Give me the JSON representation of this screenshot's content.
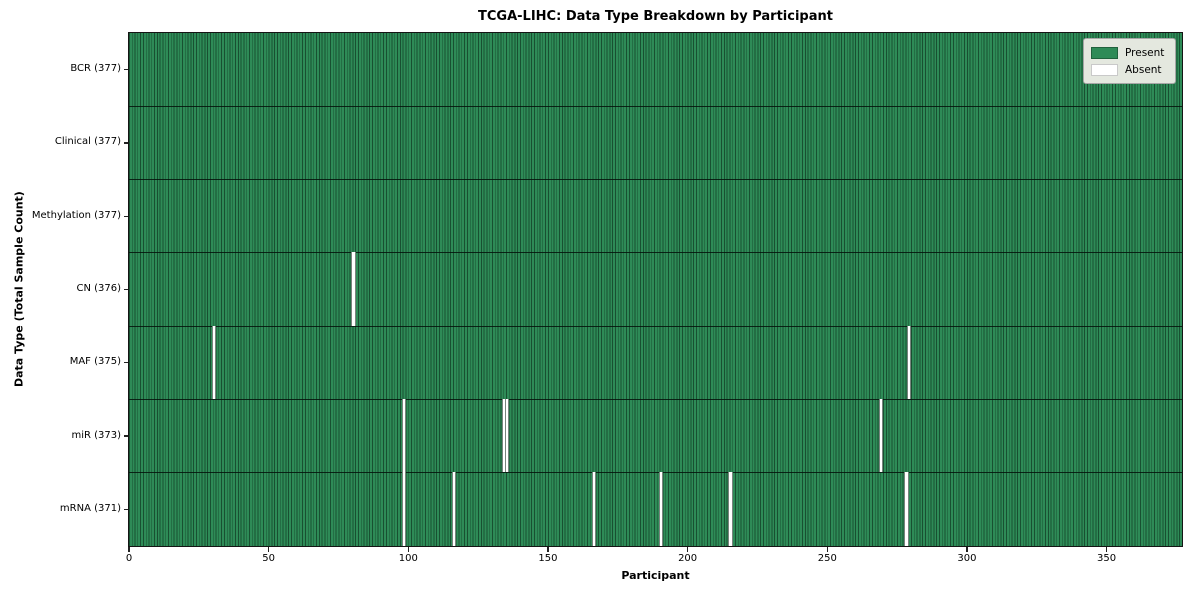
{
  "figure": {
    "title": "TCGA-LIHC: Data Type Breakdown by Participant",
    "xlabel": "Participant",
    "ylabel": "Data Type (Total Sample Count)"
  },
  "chart_data": {
    "type": "heatmap",
    "title": "TCGA-LIHC: Data Type Breakdown by Participant",
    "xlabel": "Participant",
    "ylabel": "Data Type (Total Sample Count)",
    "n_participants": 377,
    "x_range": [
      0,
      377
    ],
    "x_ticks": [
      0,
      50,
      100,
      150,
      200,
      250,
      300,
      350
    ],
    "grid": false,
    "legend_position": "upper right",
    "legend_items": [
      {
        "label": "Present",
        "color": "#2e8b57"
      },
      {
        "label": "Absent",
        "color": "#ffffff"
      }
    ],
    "colors": {
      "present": "#2e8b57",
      "absent": "#ffffff",
      "cell_edge": "rgba(6,32,18,0.55)",
      "row_separator": "rgba(4,18,10,0.85)"
    },
    "rows": [
      {
        "label": "BCR (377)",
        "data_type": "BCR",
        "present_count": 377,
        "absent_participants": []
      },
      {
        "label": "Clinical (377)",
        "data_type": "Clinical",
        "present_count": 377,
        "absent_participants": []
      },
      {
        "label": "Methylation (377)",
        "data_type": "Methylation",
        "present_count": 377,
        "absent_participants": []
      },
      {
        "label": "CN (376)",
        "data_type": "CN",
        "present_count": 376,
        "absent_participants": [
          80
        ]
      },
      {
        "label": "MAF (375)",
        "data_type": "MAF",
        "present_count": 375,
        "absent_participants": [
          30,
          279
        ]
      },
      {
        "label": "miR (373)",
        "data_type": "miR",
        "present_count": 373,
        "absent_participants": [
          98,
          134,
          135,
          269
        ]
      },
      {
        "label": "mRNA (371)",
        "data_type": "mRNA",
        "present_count": 371,
        "absent_participants": [
          98,
          116,
          166,
          190,
          215,
          278
        ]
      }
    ]
  }
}
